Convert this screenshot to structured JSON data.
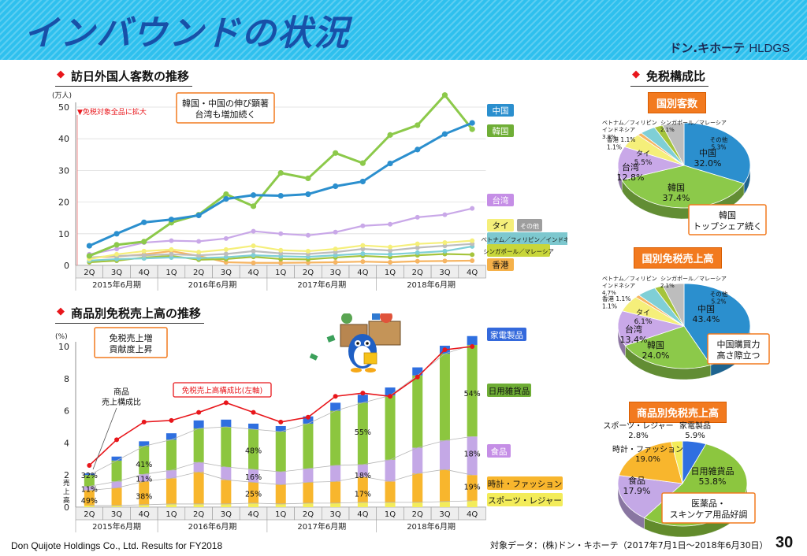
{
  "header": {
    "title": "インバウンドの状況",
    "brand": "ドン.キホーテ",
    "brand_sub": "HLDGS"
  },
  "footer": {
    "company": "Don Quijote Holdings Co., Ltd.    Results for FY2018",
    "note": "対象データ：(株)ドン・キホーテ（2017年7月1日～2018年6月30日）",
    "page": "30"
  },
  "colors": {
    "china": "#2b8fce",
    "korea": "#8cc94a",
    "taiwan": "#c9a8e8",
    "thai": "#f5ef7a",
    "other": "#bdbdbd",
    "sea": "#7fcfd6",
    "sg": "#a5c43c",
    "hk": "#f6b563",
    "elec": "#2f6fe0",
    "daily": "#8cc63f",
    "food": "#c4a8e6",
    "watch": "#f8b62d",
    "sports": "#f3ec5a",
    "ratio": "#e8161b",
    "callout": "#f27a1f"
  },
  "chart_data": [
    {
      "type": "line",
      "title": "訪日外国人客数の推移",
      "ylabel": "(万人)",
      "ylim": [
        0,
        50
      ],
      "yticks": [
        "0",
        "10",
        "20",
        "30",
        "40",
        "50"
      ],
      "categories": [
        "2Q",
        "3Q",
        "4Q",
        "1Q",
        "2Q",
        "3Q",
        "4Q",
        "1Q",
        "2Q",
        "3Q",
        "4Q",
        "1Q",
        "2Q",
        "3Q",
        "4Q"
      ],
      "groups": [
        {
          "label": "2015年6月期",
          "from": 0,
          "to": 2
        },
        {
          "label": "2016年6月期",
          "from": 3,
          "to": 6
        },
        {
          "label": "2017年6月期",
          "from": 7,
          "to": 10
        },
        {
          "label": "2018年6月期",
          "from": 11,
          "to": 14
        }
      ],
      "marker_label": "免税対象全品に拡大",
      "callout": [
        "韓国・中国の伸び顕著",
        "台湾も増加続く"
      ],
      "series": [
        {
          "name": "中国",
          "key": "china",
          "values": [
            6.2,
            10,
            13.6,
            14.5,
            15.8,
            21,
            22.2,
            22,
            22.5,
            25,
            26.5,
            32.2,
            36.6,
            41.5,
            45
          ]
        },
        {
          "name": "韓国",
          "key": "korea",
          "values": [
            3,
            6.5,
            7.5,
            13.5,
            16,
            22.5,
            18.7,
            29.2,
            27.5,
            35.5,
            32.3,
            41.2,
            44.3,
            53.8,
            43
          ]
        },
        {
          "name": "台湾",
          "key": "taiwan",
          "values": [
            3.5,
            5.2,
            7.2,
            7.8,
            7.6,
            8.5,
            10.8,
            10,
            9.5,
            10.5,
            12.5,
            13,
            15.2,
            16,
            18
          ]
        },
        {
          "name": "タイ",
          "key": "thai",
          "values": [
            2,
            3.5,
            4.5,
            5,
            4.2,
            5,
            6.2,
            4.8,
            4.5,
            5.2,
            6.3,
            5.8,
            6.8,
            7.2,
            7.8
          ]
        },
        {
          "name": "その他",
          "key": "other",
          "values": [
            2.5,
            3,
            3.2,
            3.5,
            3.2,
            3.6,
            4.5,
            3.8,
            3.6,
            4.2,
            5.2,
            4.7,
            5.6,
            6.2,
            6.8
          ]
        },
        {
          "name": "ベトナム／フィリピン／インドネシア",
          "key": "sea",
          "values": [
            1.5,
            2,
            2.2,
            2.5,
            2.3,
            2.6,
            3.2,
            2.9,
            2.7,
            3.2,
            3.7,
            3.5,
            4,
            4.5,
            6
          ]
        },
        {
          "name": "シンガポール／マレーシア",
          "key": "sg",
          "values": [
            1,
            1.5,
            2.5,
            3,
            1.8,
            2,
            2.7,
            2,
            1.9,
            2.5,
            3,
            2.6,
            3.2,
            3.6,
            3.4
          ]
        },
        {
          "name": "香港",
          "key": "hk",
          "values": [
            2.5,
            2.8,
            3.5,
            4.5,
            3,
            1,
            0.8,
            0.8,
            0.9,
            1,
            1.2,
            1,
            1.3,
            1.4,
            1.5
          ]
        }
      ]
    },
    {
      "type": "bar",
      "title": "商品別免税売上高の推移",
      "ylabel": "(%)",
      "ylim": [
        0,
        10
      ],
      "yticks": [
        "0",
        "2",
        "4",
        "6",
        "8",
        "10"
      ],
      "categories": [
        "2Q",
        "3Q",
        "4Q",
        "1Q",
        "2Q",
        "3Q",
        "4Q",
        "1Q",
        "2Q",
        "3Q",
        "4Q",
        "1Q",
        "2Q",
        "3Q",
        "4Q"
      ],
      "groups": [
        {
          "label": "2015年6月期",
          "from": 0,
          "to": 2
        },
        {
          "label": "2016年6月期",
          "from": 3,
          "to": 6
        },
        {
          "label": "2017年6月期",
          "from": 7,
          "to": 10
        },
        {
          "label": "2018年6月期",
          "from": 11,
          "to": 14
        }
      ],
      "stack_keys": [
        "sports",
        "watch",
        "food",
        "daily",
        "elec"
      ],
      "stacks": [
        [
          0.1,
          0.95,
          0.25,
          0.7,
          0.1
        ],
        [
          0.1,
          1.1,
          0.4,
          1.3,
          0.25
        ],
        [
          0.15,
          1.45,
          0.45,
          1.75,
          0.3
        ],
        [
          0.2,
          1.6,
          0.5,
          1.9,
          0.4
        ],
        [
          0.2,
          2.0,
          0.6,
          2.1,
          0.5
        ],
        [
          0.2,
          1.5,
          0.8,
          2.5,
          0.45
        ],
        [
          0.25,
          1.3,
          0.8,
          2.5,
          0.35
        ],
        [
          0.2,
          1.2,
          0.8,
          2.5,
          0.35
        ],
        [
          0.25,
          1.3,
          0.85,
          2.8,
          0.45
        ],
        [
          0.25,
          1.35,
          1.0,
          3.4,
          0.5
        ],
        [
          0.3,
          1.6,
          0.75,
          3.85,
          0.5
        ],
        [
          0.3,
          1.3,
          1.35,
          4.0,
          0.5
        ],
        [
          0.3,
          1.8,
          1.6,
          4.5,
          0.5
        ],
        [
          0.35,
          2.0,
          1.8,
          5.4,
          0.5
        ],
        [
          0.4,
          1.6,
          2.4,
          5.7,
          0.55
        ]
      ],
      "ratio_line": [
        2.6,
        4.2,
        5.3,
        5.4,
        5.9,
        6.5,
        5.9,
        5.3,
        5.6,
        6.9,
        7.1,
        6.9,
        8.1,
        9.8,
        10.0
      ],
      "ratio_label": "免税売上高構成比(左軸)",
      "callout": [
        "免税売上増",
        "貢献度上昇"
      ],
      "product_label": [
        "商品",
        "売上構成比"
      ],
      "left_labels": [
        "売",
        "上",
        "高"
      ],
      "share_labels": [
        {
          "index": 0,
          "text": "32%",
          "v": 2.0
        },
        {
          "index": 0,
          "text": "11%",
          "v": 1.15
        },
        {
          "index": 0,
          "text": "49%",
          "v": 0.45
        },
        {
          "index": 2,
          "text": "41%",
          "v": 2.7
        },
        {
          "index": 2,
          "text": "11%",
          "v": 1.8
        },
        {
          "index": 2,
          "text": "38%",
          "v": 0.7
        },
        {
          "index": 6,
          "text": "48%",
          "v": 3.55
        },
        {
          "index": 6,
          "text": "16%",
          "v": 1.9
        },
        {
          "index": 6,
          "text": "25%",
          "v": 0.85
        },
        {
          "index": 10,
          "text": "55%",
          "v": 4.7
        },
        {
          "index": 10,
          "text": "18%",
          "v": 2.0
        },
        {
          "index": 10,
          "text": "17%",
          "v": 0.85
        },
        {
          "index": 14,
          "text": "54%",
          "v": 7.1
        },
        {
          "index": 14,
          "text": "18%",
          "v": 3.35
        },
        {
          "index": 14,
          "text": "19%",
          "v": 1.3
        }
      ],
      "legend": [
        {
          "name": "家電製品",
          "key": "elec"
        },
        {
          "name": "日用雑貨品",
          "key": "daily"
        },
        {
          "name": "食品",
          "key": "food"
        },
        {
          "name": "時計・ファッション",
          "key": "watch"
        },
        {
          "name": "スポーツ・レジャー",
          "key": "sports"
        }
      ]
    },
    {
      "type": "pie",
      "title": "国別客数",
      "section": "免税構成比",
      "callout": [
        "韓国",
        "トップシェア続く"
      ],
      "slices": [
        {
          "name": "中国",
          "value": 32.0,
          "label": "32.0%",
          "key": "china"
        },
        {
          "name": "韓国",
          "value": 37.4,
          "label": "37.4%",
          "key": "korea"
        },
        {
          "name": "台湾",
          "value": 12.8,
          "label": "12.8%",
          "key": "taiwan"
        },
        {
          "name": "タイ",
          "value": 5.5,
          "label": "5.5%",
          "key": "thai"
        },
        {
          "name": "香港",
          "value": 1.1,
          "label": "1.1%",
          "key": "hk"
        },
        {
          "name": "ベトナム／フィリピン／インドネシア",
          "value": 3.8,
          "label": "3.8%",
          "key": "sea"
        },
        {
          "name": "シンガポール／マレーシア",
          "value": 2.1,
          "label": "2.1%",
          "key": "sg"
        },
        {
          "name": "その他",
          "value": 5.3,
          "label": "5.3%",
          "key": "other"
        }
      ]
    },
    {
      "type": "pie",
      "title": "国別免税売上高",
      "callout": [
        "中国購買力",
        "高さ際立つ"
      ],
      "slices": [
        {
          "name": "中国",
          "value": 43.4,
          "label": "43.4%",
          "key": "china"
        },
        {
          "name": "韓国",
          "value": 24.0,
          "label": "24.0%",
          "key": "korea"
        },
        {
          "name": "台湾",
          "value": 13.4,
          "label": "13.4%",
          "key": "taiwan"
        },
        {
          "name": "タイ",
          "value": 6.1,
          "label": "6.1%",
          "key": "thai"
        },
        {
          "name": "香港",
          "value": 1.1,
          "label": "1.1%",
          "key": "hk"
        },
        {
          "name": "ベトナム／フィリピン／インドネシア",
          "value": 4.7,
          "label": "4.7%",
          "key": "sea"
        },
        {
          "name": "シンガポール／マレーシア",
          "value": 2.1,
          "label": "2.1%",
          "key": "sg"
        },
        {
          "name": "その他",
          "value": 5.2,
          "label": "5.2%",
          "key": "other"
        }
      ]
    },
    {
      "type": "pie",
      "title": "商品別免税売上高",
      "callout": [
        "医薬品・",
        "スキンケア用品好調"
      ],
      "slices": [
        {
          "name": "家電製品",
          "value": 5.9,
          "label": "5.9%",
          "key": "elec"
        },
        {
          "name": "日用雑貨品",
          "value": 53.8,
          "label": "53.8%",
          "key": "daily"
        },
        {
          "name": "食品",
          "value": 17.9,
          "label": "17.9%",
          "key": "food"
        },
        {
          "name": "時計・ファッション",
          "value": 19.0,
          "label": "19.0%",
          "key": "watch"
        },
        {
          "name": "スポーツ・レジャー",
          "value": 2.8,
          "label": "2.8%",
          "key": "sports"
        }
      ]
    }
  ]
}
